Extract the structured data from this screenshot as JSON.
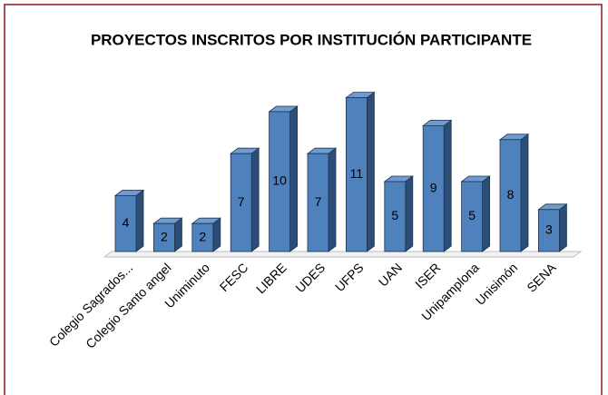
{
  "chart_data": {
    "type": "bar3d",
    "title": "PROYECTOS INSCRITOS POR INSTITUCIÓN PARTICIPANTE",
    "categories": [
      "Colegio Sagrados...",
      "Colegio Santo angel",
      "Uniminuto",
      "FESC",
      "LIBRE",
      "UDES",
      "UFPS",
      "UAN",
      "ISER",
      "Unipamplona",
      "Unisimón",
      "SENA"
    ],
    "values": [
      4,
      2,
      2,
      7,
      10,
      7,
      11,
      5,
      9,
      5,
      8,
      3
    ],
    "color": "#4f81bd"
  }
}
